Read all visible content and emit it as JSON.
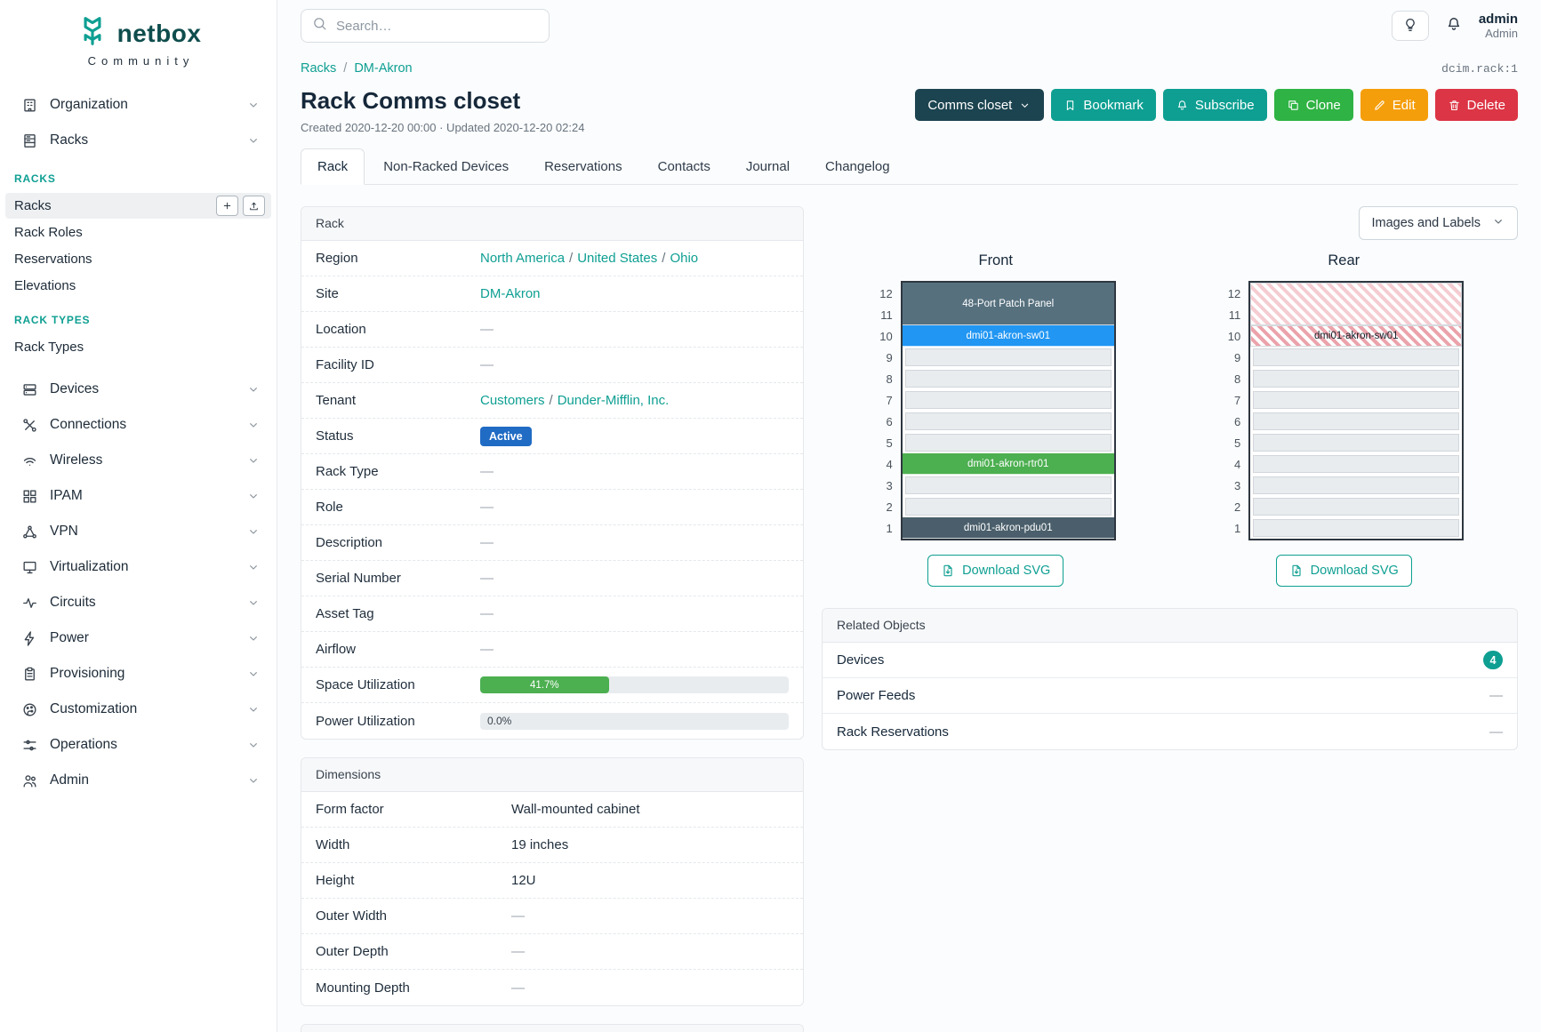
{
  "colors": {
    "teal": "#0e9f92",
    "dark_action": "#1c4450",
    "green": "#2fb344",
    "orange": "#f59e0b",
    "red": "#dc3545",
    "status_blue": "#206bc4",
    "progress_green": "#4caf50"
  },
  "brand": {
    "name": "netbox",
    "community": "Community"
  },
  "topbar": {
    "search_placeholder": "Search…",
    "user": {
      "name": "admin",
      "role": "Admin"
    }
  },
  "sidebar": {
    "items": [
      {
        "type": "item",
        "label": "Organization",
        "icon": "organization-icon"
      },
      {
        "type": "item",
        "label": "Racks",
        "icon": "racks-icon"
      },
      {
        "type": "heading",
        "label": "RACKS"
      },
      {
        "type": "sub",
        "label": "Racks",
        "active": true,
        "actions": [
          {
            "icon": "plus-icon"
          },
          {
            "icon": "upload-icon"
          }
        ]
      },
      {
        "type": "sub",
        "label": "Rack Roles"
      },
      {
        "type": "sub",
        "label": "Reservations"
      },
      {
        "type": "sub",
        "label": "Elevations"
      },
      {
        "type": "heading",
        "label": "RACK TYPES"
      },
      {
        "type": "sub",
        "label": "Rack Types"
      },
      {
        "type": "gap"
      },
      {
        "type": "item",
        "label": "Devices",
        "icon": "devices-icon"
      },
      {
        "type": "item",
        "label": "Connections",
        "icon": "connections-icon"
      },
      {
        "type": "item",
        "label": "Wireless",
        "icon": "wireless-icon"
      },
      {
        "type": "item",
        "label": "IPAM",
        "icon": "ipam-icon"
      },
      {
        "type": "item",
        "label": "VPN",
        "icon": "vpn-icon"
      },
      {
        "type": "item",
        "label": "Virtualization",
        "icon": "virtualization-icon"
      },
      {
        "type": "item",
        "label": "Circuits",
        "icon": "circuits-icon"
      },
      {
        "type": "item",
        "label": "Power",
        "icon": "power-icon"
      },
      {
        "type": "item",
        "label": "Provisioning",
        "icon": "provisioning-icon"
      },
      {
        "type": "item",
        "label": "Customization",
        "icon": "customization-icon"
      },
      {
        "type": "item",
        "label": "Operations",
        "icon": "operations-icon"
      },
      {
        "type": "item",
        "label": "Admin",
        "icon": "admin-icon"
      }
    ]
  },
  "page": {
    "breadcrumb": [
      "Racks",
      "DM-Akron"
    ],
    "object_ref": "dcim.rack:1",
    "title": "Rack Comms closet",
    "meta": "Created 2020-12-20 00:00 · Updated 2020-12-20 02:24",
    "actions": [
      {
        "label": "Comms closet",
        "icon": "chevron-down-icon",
        "icon_after": true,
        "color": "#1c4450"
      },
      {
        "label": "Bookmark",
        "icon": "bookmark-icon",
        "color": "#0e9f92"
      },
      {
        "label": "Subscribe",
        "icon": "bell-icon",
        "color": "#0e9f92"
      },
      {
        "label": "Clone",
        "icon": "copy-icon",
        "color": "#2fb344"
      },
      {
        "label": "Edit",
        "icon": "pencil-icon",
        "color": "#f59e0b"
      },
      {
        "label": "Delete",
        "icon": "trash-icon",
        "color": "#dc3545"
      }
    ],
    "tabs": [
      {
        "label": "Rack",
        "active": true
      },
      {
        "label": "Non-Racked Devices"
      },
      {
        "label": "Reservations"
      },
      {
        "label": "Contacts"
      },
      {
        "label": "Journal"
      },
      {
        "label": "Changelog"
      }
    ]
  },
  "rack_card": {
    "title": "Rack",
    "rows": [
      {
        "label": "Region",
        "type": "links",
        "links": [
          "North America",
          "United States",
          "Ohio"
        ]
      },
      {
        "label": "Site",
        "type": "links",
        "links": [
          "DM-Akron"
        ]
      },
      {
        "label": "Location",
        "type": "dash"
      },
      {
        "label": "Facility ID",
        "type": "dash"
      },
      {
        "label": "Tenant",
        "type": "links",
        "links": [
          "Customers",
          "Dunder-Mifflin, Inc."
        ]
      },
      {
        "label": "Status",
        "type": "badge",
        "value": "Active",
        "color": "#206bc4"
      },
      {
        "label": "Rack Type",
        "type": "dash"
      },
      {
        "label": "Role",
        "type": "dash"
      },
      {
        "label": "Description",
        "type": "dash"
      },
      {
        "label": "Serial Number",
        "type": "dash"
      },
      {
        "label": "Asset Tag",
        "type": "dash"
      },
      {
        "label": "Airflow",
        "type": "dash"
      },
      {
        "label": "Space Utilization",
        "type": "progress",
        "percent": 41.7,
        "value": "41.7%",
        "color": "#4caf50"
      },
      {
        "label": "Power Utilization",
        "type": "progress",
        "percent": 0,
        "value": "0.0%",
        "color": "#4caf50"
      }
    ]
  },
  "dimensions_card": {
    "title": "Dimensions",
    "rows": [
      {
        "label": "Form factor",
        "type": "text",
        "value": "Wall-mounted cabinet"
      },
      {
        "label": "Width",
        "type": "text",
        "value": "19 inches"
      },
      {
        "label": "Height",
        "type": "text",
        "value": "12U"
      },
      {
        "label": "Outer Width",
        "type": "dash"
      },
      {
        "label": "Outer Depth",
        "type": "dash"
      },
      {
        "label": "Mounting Depth",
        "type": "dash"
      }
    ]
  },
  "elevation_panel": {
    "toggle_label": "Images and Labels",
    "download_label": "Download SVG",
    "views": [
      {
        "title": "Front",
        "units": 12,
        "devices": [
          {
            "name": "48-Port Patch Panel",
            "top_unit": 12,
            "span": 2,
            "bg": "#56707e",
            "fg": "#ffffff"
          },
          {
            "name": "dmi01-akron-sw01",
            "top_unit": 10,
            "span": 1,
            "bg": "#2196f3",
            "fg": "#ffffff"
          },
          {
            "name": "dmi01-akron-rtr01",
            "top_unit": 4,
            "span": 1,
            "bg": "#4caf50",
            "fg": "#ffffff"
          },
          {
            "name": "dmi01-akron-pdu01",
            "top_unit": 1,
            "span": 1,
            "bg": "#4a5f6b",
            "fg": "#ffffff"
          }
        ]
      },
      {
        "title": "Rear",
        "units": 12,
        "devices": [
          {
            "name": "",
            "top_unit": 12,
            "span": 2,
            "hatch": "light"
          },
          {
            "name": "dmi01-akron-sw01",
            "top_unit": 10,
            "span": 1,
            "hatch": "strong",
            "fg": "#15212c"
          }
        ]
      }
    ]
  },
  "related_objects": {
    "title": "Related Objects",
    "rows": [
      {
        "label": "Devices",
        "badge": "4"
      },
      {
        "label": "Power Feeds"
      },
      {
        "label": "Rack Reservations"
      }
    ]
  }
}
